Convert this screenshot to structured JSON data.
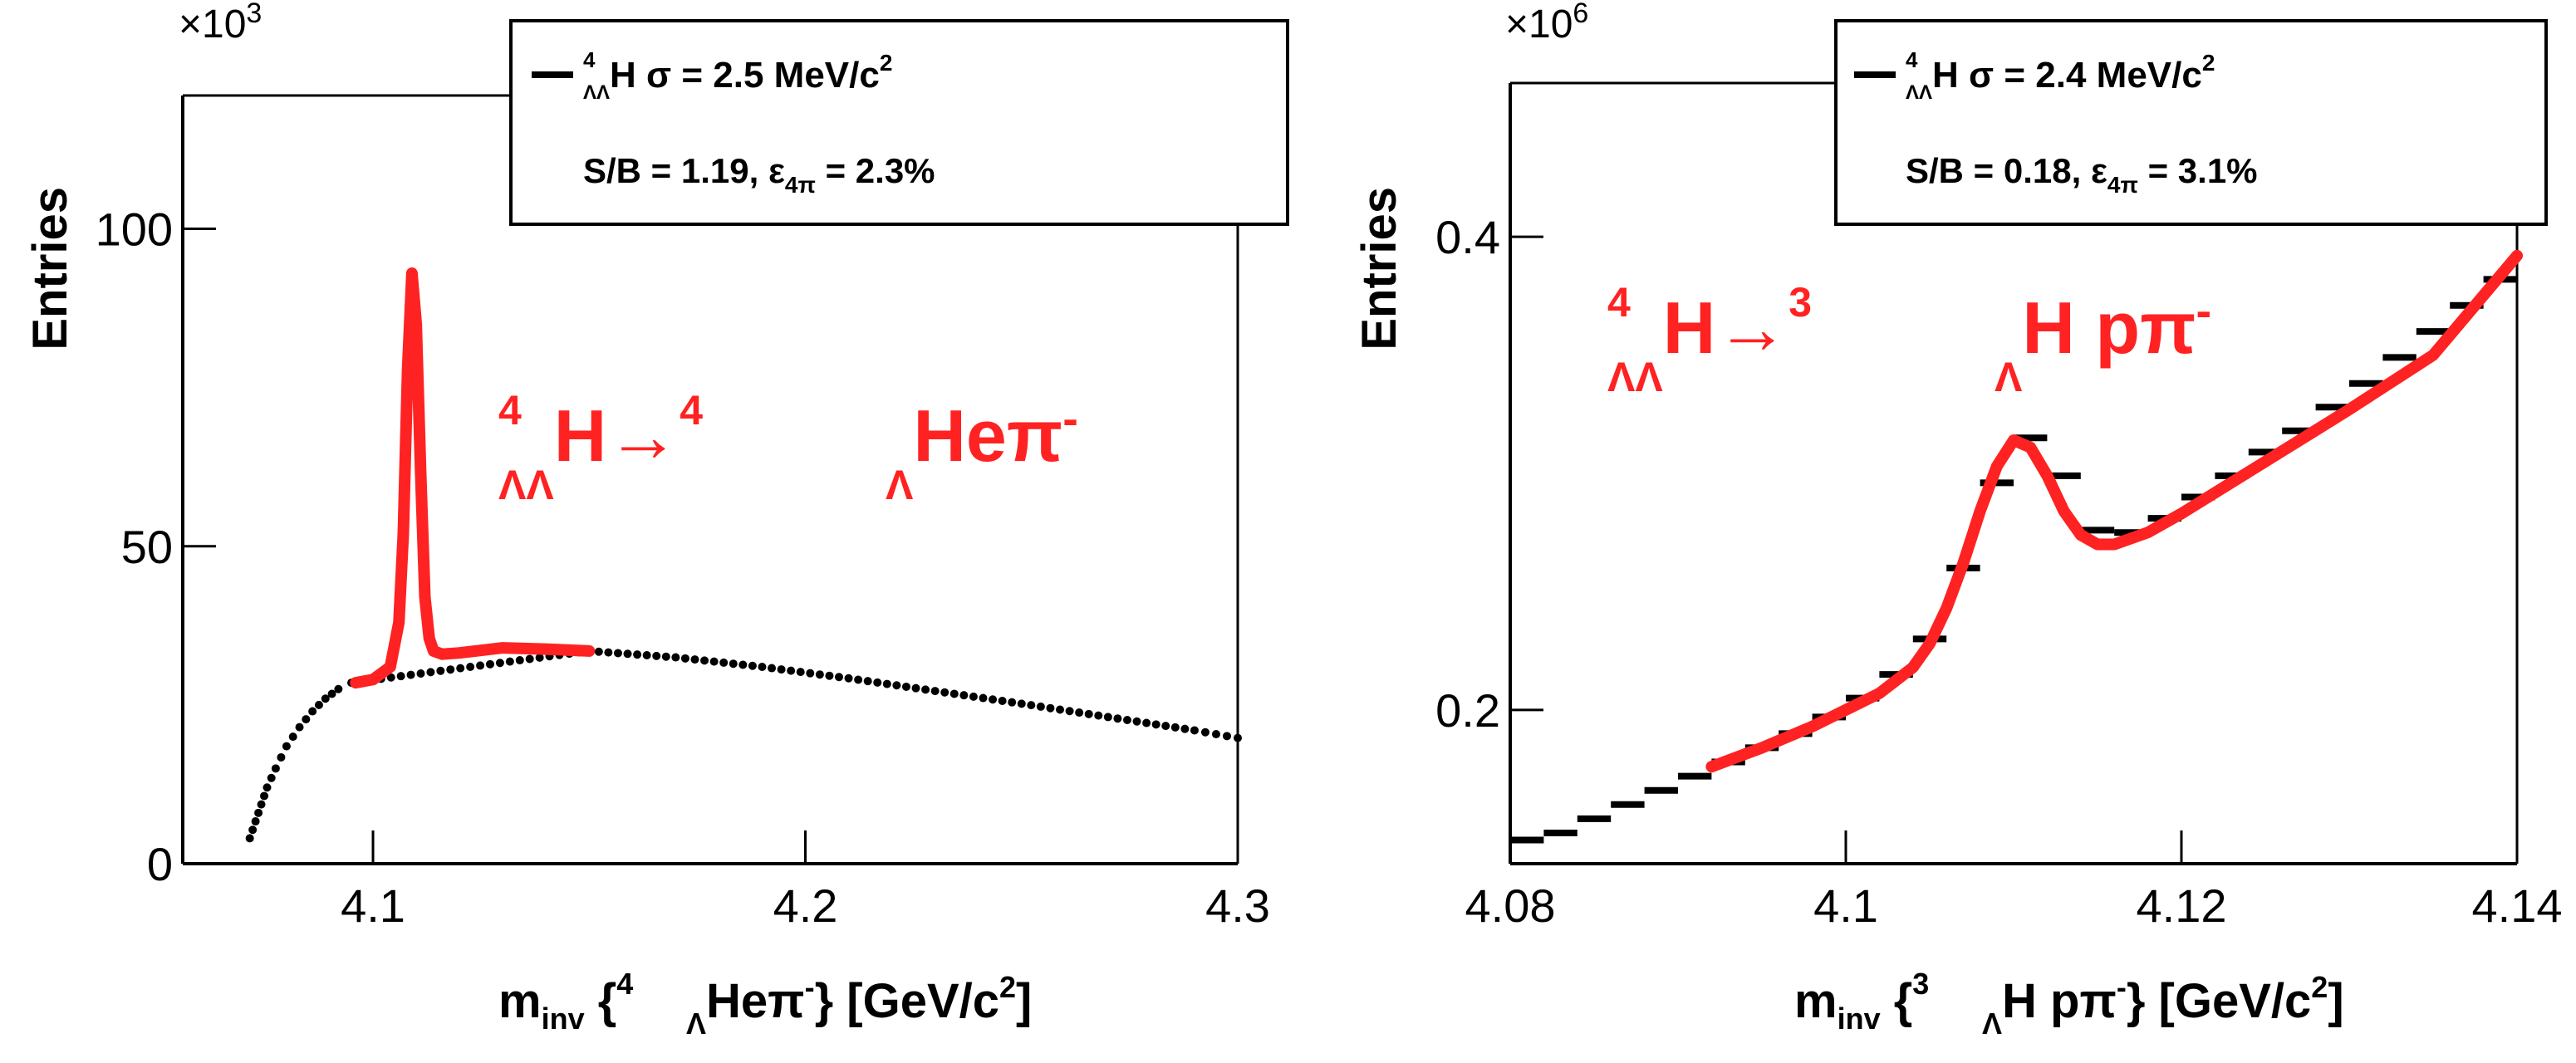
{
  "chart_data": [
    {
      "type": "scatter",
      "panel": "left",
      "xlabel": {
        "main": "m",
        "sub": "inv",
        "rest": "{",
        "nuc_mass": "4",
        "nuc_lam": "Λ",
        "nuc_el": "Heπ",
        "nuc_charge": "-",
        "close": "} [GeV/c",
        "power": "2",
        "end": "]"
      },
      "ylabel": "Entries",
      "y_multiplier": {
        "base": "×10",
        "exp": "3"
      },
      "xlim": [
        4.056,
        4.3
      ],
      "ylim": [
        0,
        121
      ],
      "x_ticks": [
        4.1,
        4.2,
        4.3
      ],
      "x_tick_labels": [
        "4.1",
        "4.2",
        "4.3"
      ],
      "y_ticks": [
        0,
        50,
        100
      ],
      "y_tick_labels": [
        "0",
        "50",
        "100"
      ],
      "legend": {
        "placement": "top-right",
        "line1": {
          "mass": "4",
          "sub": "ΛΛ",
          "el": "H",
          "text": "σ = 2.5 MeV/c",
          "power": "2"
        },
        "line2": {
          "text1": "S/B = 1.19,  ε",
          "sub": "4π",
          "text2": " = 2.3%"
        }
      },
      "annotation": {
        "a_mass": "4",
        "a_sub": "ΛΛ",
        "a_el": "H→",
        "b_mass": "4",
        "b_sub": "Λ",
        "b_el": "Heπ",
        "charge": "-"
      },
      "series": [
        {
          "role": "data",
          "color": "#000000",
          "x": [
            4.0715,
            4.0735,
            4.0755,
            4.0775,
            4.08,
            4.083,
            4.086,
            4.089,
            4.092,
            4.095,
            4.15,
            4.17,
            4.19,
            4.21,
            4.23,
            4.25,
            4.27,
            4.29,
            4.3
          ],
          "y": [
            4,
            8,
            12,
            15,
            18.5,
            21.5,
            24,
            26,
            27.5,
            28.5,
            33.5,
            32.5,
            31,
            29.2,
            27.2,
            25.2,
            23.1,
            21,
            19.8
          ]
        },
        {
          "role": "fit",
          "color": "#ff2222",
          "x": [
            4.096,
            4.1,
            4.104,
            4.106,
            4.107,
            4.108,
            4.109,
            4.11,
            4.111,
            4.112,
            4.113,
            4.114,
            4.116,
            4.12,
            4.13,
            4.14,
            4.15
          ],
          "y": [
            28.5,
            29,
            31,
            38,
            52,
            78,
            93,
            85,
            62,
            42,
            35.5,
            33.5,
            33,
            33.2,
            34,
            33.8,
            33.5
          ]
        }
      ]
    },
    {
      "type": "scatter",
      "panel": "right",
      "xlabel": {
        "main": "m",
        "sub": "inv",
        "rest": "{",
        "nuc_mass": "3",
        "nuc_lam": "Λ",
        "nuc_el": "H pπ",
        "nuc_charge": "-",
        "close": "} [GeV/c",
        "power": "2",
        "end": "]"
      },
      "ylabel": "Entries",
      "y_multiplier": {
        "base": "×10",
        "exp": "6"
      },
      "xlim": [
        4.08,
        4.14
      ],
      "ylim": [
        0.135,
        0.465
      ],
      "x_ticks": [
        4.08,
        4.1,
        4.12,
        4.14
      ],
      "x_tick_labels": [
        "4.08",
        "4.1",
        "4.12",
        "4.14"
      ],
      "y_ticks": [
        0.2,
        0.4
      ],
      "y_tick_labels": [
        "0.2",
        "0.4"
      ],
      "legend": {
        "placement": "top-right",
        "line1": {
          "mass": "4",
          "sub": "ΛΛ",
          "el": "H",
          "text": "σ = 2.4 MeV/c",
          "power": "2"
        },
        "line2": {
          "text1": "S/B = 0.18,  ε",
          "sub": "4π",
          "text2": " = 3.1%"
        }
      },
      "annotation": {
        "a_mass": "4",
        "a_sub": "ΛΛ",
        "a_el": "H→",
        "b_mass": "3",
        "b_sub": "Λ",
        "b_el": "H pπ",
        "charge": "-"
      },
      "series": [
        {
          "role": "data",
          "color": "#000000",
          "x": [
            4.081,
            4.083,
            4.085,
            4.087,
            4.089,
            4.091,
            4.093,
            4.095,
            4.097,
            4.099,
            4.101,
            4.103,
            4.105,
            4.107,
            4.109,
            4.111,
            4.113,
            4.115,
            4.117,
            4.119,
            4.121,
            4.123,
            4.125,
            4.127,
            4.129,
            4.131,
            4.133,
            4.135,
            4.137,
            4.139
          ],
          "y": [
            0.145,
            0.148,
            0.154,
            0.16,
            0.166,
            0.172,
            0.178,
            0.184,
            0.19,
            0.197,
            0.205,
            0.215,
            0.23,
            0.26,
            0.296,
            0.315,
            0.299,
            0.276,
            0.275,
            0.281,
            0.29,
            0.299,
            0.309,
            0.318,
            0.328,
            0.338,
            0.349,
            0.36,
            0.371,
            0.382
          ]
        },
        {
          "role": "fit",
          "color": "#ff2222",
          "x": [
            4.092,
            4.095,
            4.098,
            4.1,
            4.102,
            4.104,
            4.105,
            4.106,
            4.107,
            4.108,
            4.109,
            4.11,
            4.111,
            4.112,
            4.113,
            4.114,
            4.115,
            4.116,
            4.118,
            4.12,
            4.125,
            4.13,
            4.135,
            4.14
          ],
          "y": [
            0.176,
            0.184,
            0.193,
            0.2,
            0.207,
            0.218,
            0.228,
            0.243,
            0.262,
            0.284,
            0.303,
            0.314,
            0.311,
            0.299,
            0.284,
            0.274,
            0.27,
            0.27,
            0.275,
            0.283,
            0.305,
            0.327,
            0.35,
            0.392
          ]
        }
      ]
    }
  ]
}
